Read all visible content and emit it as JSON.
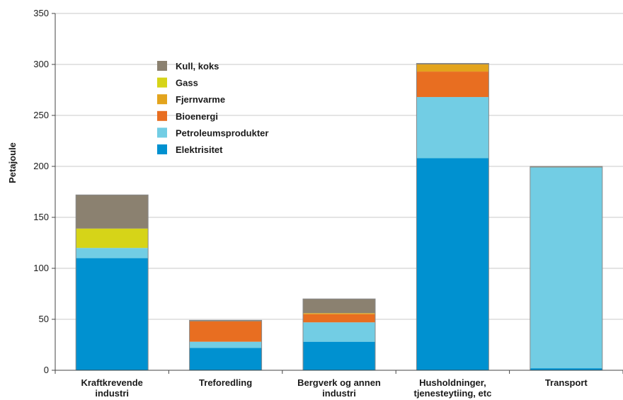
{
  "chart_data": {
    "type": "bar",
    "stacked": true,
    "title": "",
    "xlabel": "",
    "ylabel": "Petajoule",
    "ylim": [
      0,
      350
    ],
    "yticks": [
      0,
      50,
      100,
      150,
      200,
      250,
      300,
      350
    ],
    "grid": true,
    "legend_position": "top-left",
    "categories": [
      [
        "Kraftkrevende",
        "industri"
      ],
      [
        "Treforedling"
      ],
      [
        "Bergverk og annen",
        "industri"
      ],
      [
        "Husholdninger,",
        "tjenesteytiing, etc"
      ],
      [
        "Transport"
      ]
    ],
    "series": [
      {
        "name": "Elektrisitet",
        "color": "#0091d0",
        "values": [
          110,
          22,
          28,
          208,
          2
        ]
      },
      {
        "name": "Petroleumsprodukter",
        "color": "#72cde4",
        "values": [
          10,
          6,
          19,
          60,
          197
        ]
      },
      {
        "name": "Bioenergi",
        "color": "#e86e21",
        "values": [
          0,
          20,
          8,
          25,
          0
        ]
      },
      {
        "name": "Fjernvarme",
        "color": "#e3a41d",
        "values": [
          0,
          0,
          1,
          7,
          0
        ]
      },
      {
        "name": "Gass",
        "color": "#d6d418",
        "values": [
          19,
          0,
          0,
          0,
          0
        ]
      },
      {
        "name": "Kull, koks",
        "color": "#8b8170",
        "values": [
          33,
          1,
          14,
          1,
          1
        ]
      }
    ],
    "legend_order": [
      "Kull, koks",
      "Gass",
      "Fjernvarme",
      "Bioenergi",
      "Petroleumsprodukter",
      "Elektrisitet"
    ]
  }
}
